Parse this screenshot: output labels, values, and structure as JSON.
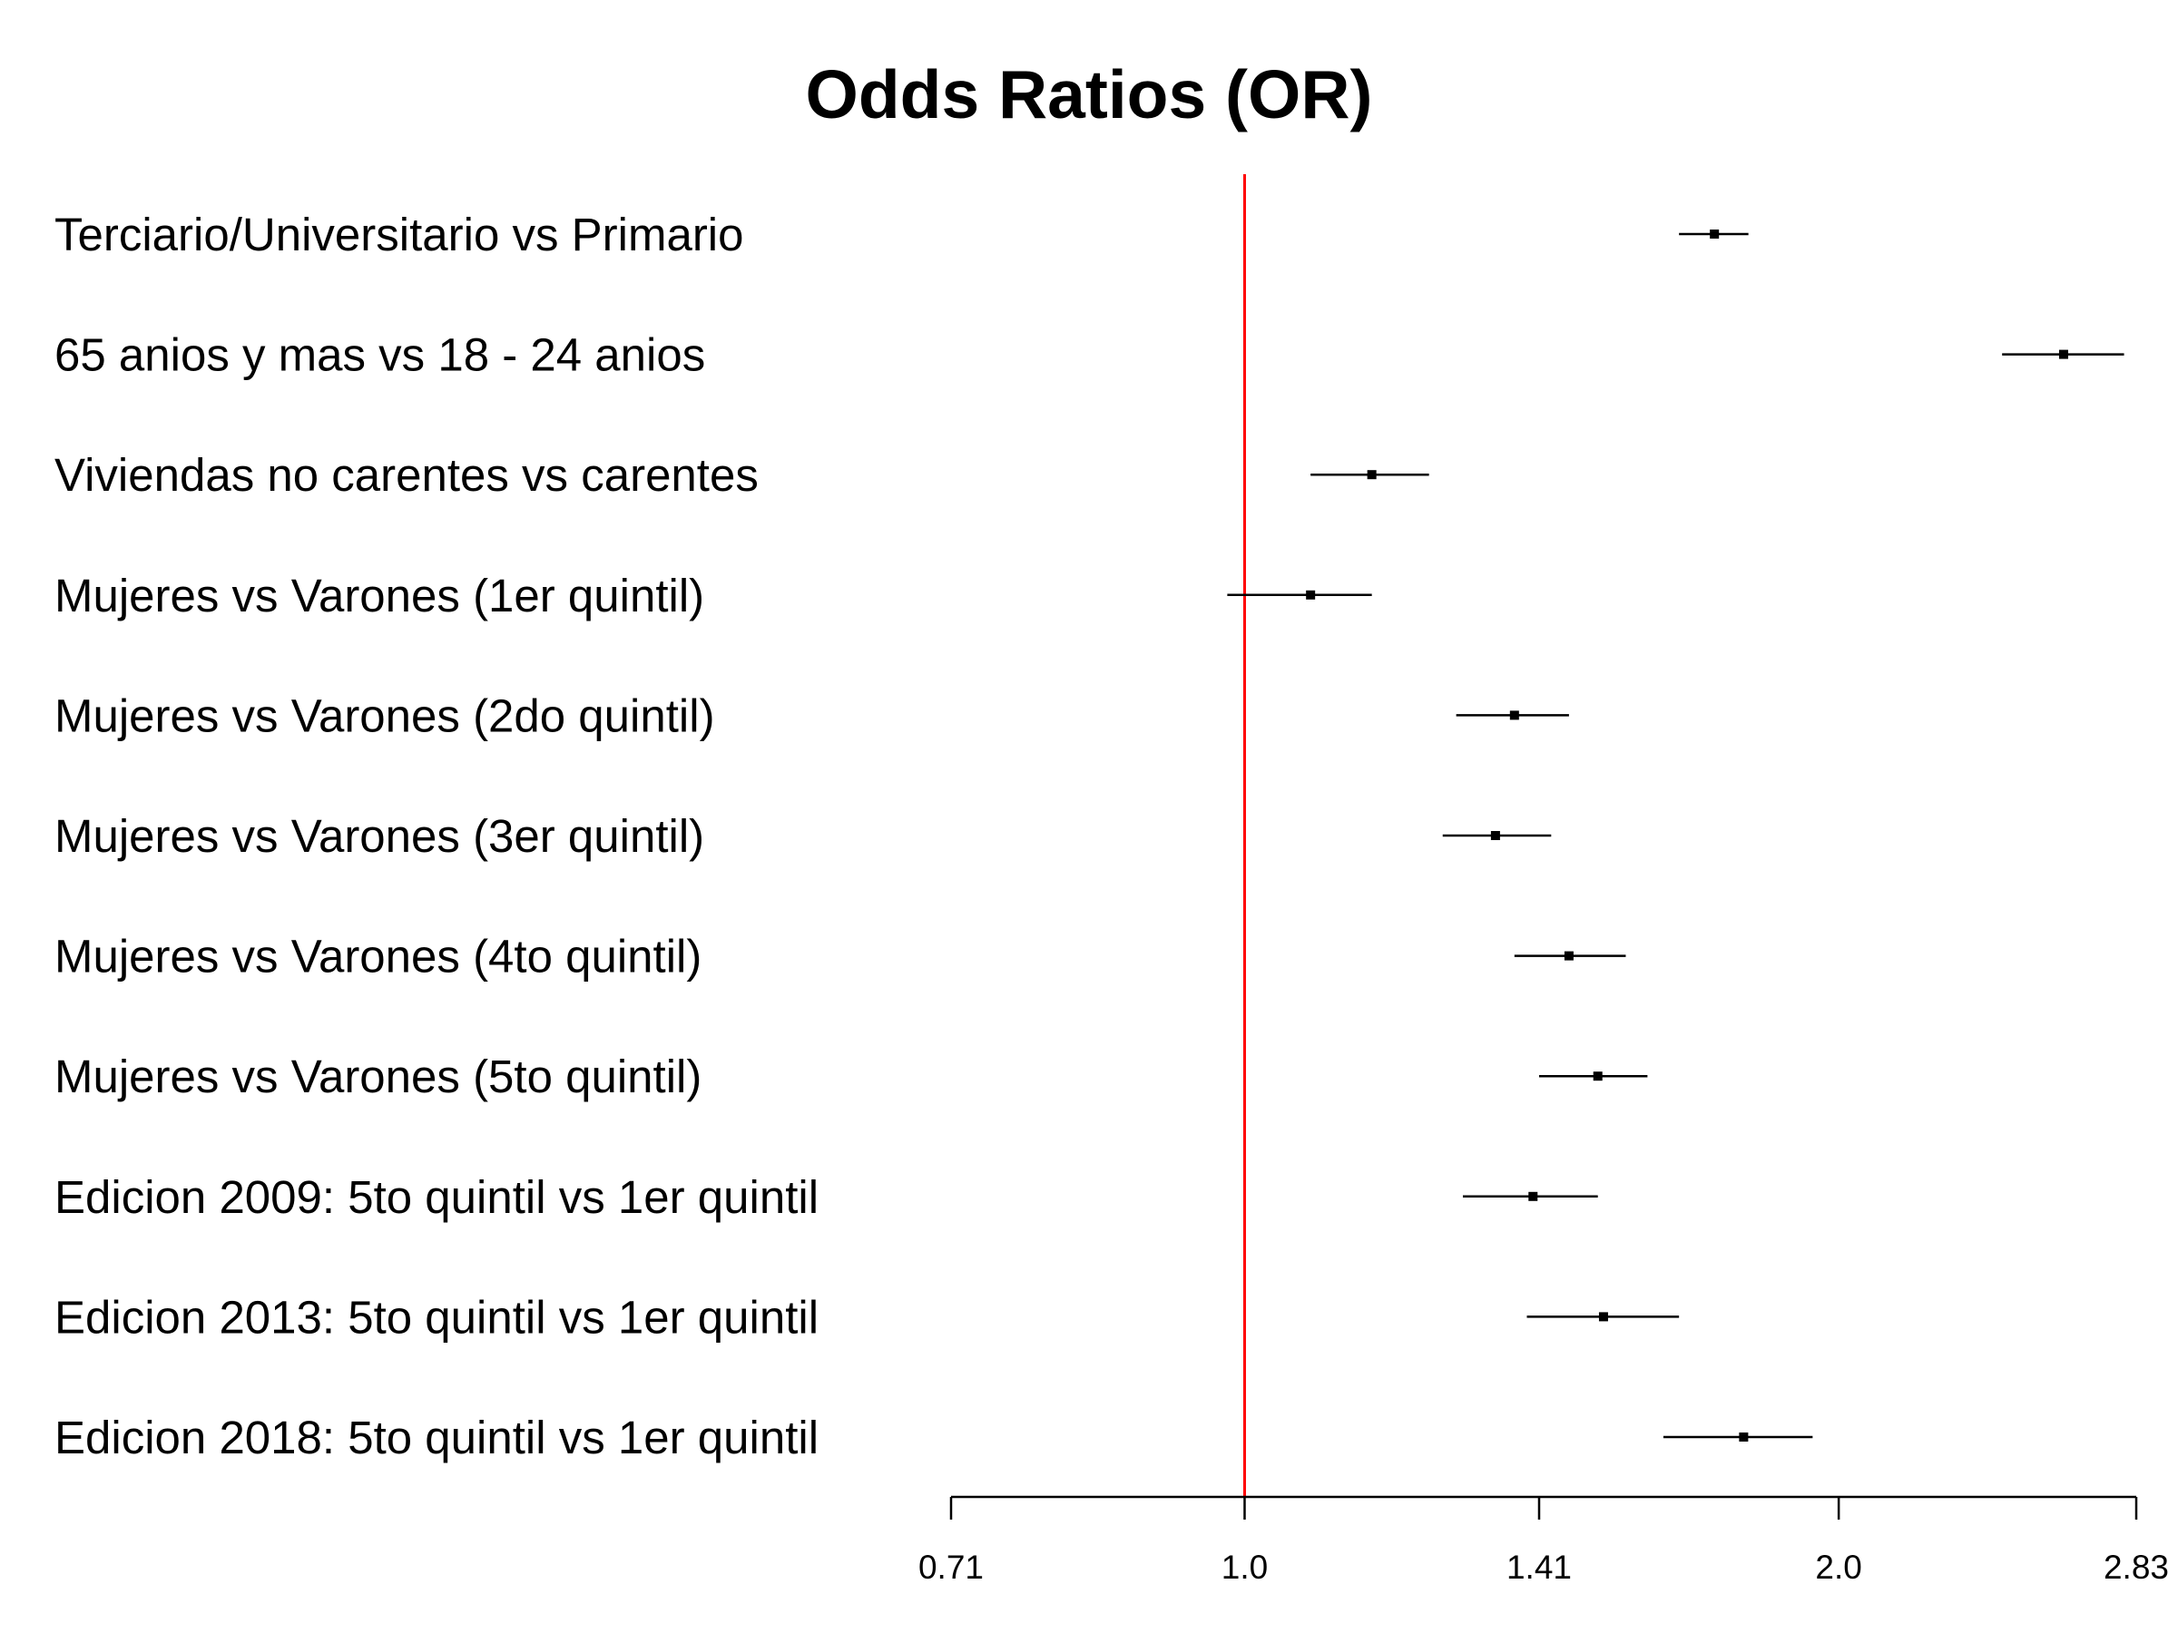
{
  "chart_data": {
    "type": "forest",
    "title": "Odds Ratios (OR)",
    "x_scale": "log",
    "xlim": [
      0.71,
      2.83
    ],
    "x_ticks": [
      0.71,
      1.0,
      1.41,
      2.0,
      2.83
    ],
    "x_tick_labels": [
      "0.71",
      "1.0",
      "1.41",
      "2.0",
      "2.83"
    ],
    "reference_line": {
      "value": 1.0,
      "color": "#ff0000"
    },
    "series": [
      {
        "label": "Terciario/Universitario vs Primario",
        "estimate": 1.73,
        "lower": 1.66,
        "upper": 1.8
      },
      {
        "label": "65 anios y mas vs 18 - 24 anios",
        "estimate": 2.6,
        "lower": 2.42,
        "upper": 2.79
      },
      {
        "label": "Viviendas no carentes vs carentes",
        "estimate": 1.16,
        "lower": 1.08,
        "upper": 1.24
      },
      {
        "label": "Mujeres vs Varones (1er quintil)",
        "estimate": 1.08,
        "lower": 0.98,
        "upper": 1.16
      },
      {
        "label": "Mujeres vs Varones (2do quintil)",
        "estimate": 1.37,
        "lower": 1.28,
        "upper": 1.46
      },
      {
        "label": "Mujeres vs Varones (3er quintil)",
        "estimate": 1.34,
        "lower": 1.26,
        "upper": 1.43
      },
      {
        "label": "Mujeres vs Varones (4to quintil)",
        "estimate": 1.46,
        "lower": 1.37,
        "upper": 1.56
      },
      {
        "label": "Mujeres vs Varones (5to quintil)",
        "estimate": 1.51,
        "lower": 1.41,
        "upper": 1.6
      },
      {
        "label": "Edicion 2009: 5to quintil vs 1er quintil",
        "estimate": 1.4,
        "lower": 1.29,
        "upper": 1.51
      },
      {
        "label": "Edicion 2013: 5to quintil vs 1er quintil",
        "estimate": 1.52,
        "lower": 1.39,
        "upper": 1.66
      },
      {
        "label": "Edicion 2018: 5to quintil vs 1er quintil",
        "estimate": 1.79,
        "lower": 1.63,
        "upper": 1.94
      }
    ]
  }
}
